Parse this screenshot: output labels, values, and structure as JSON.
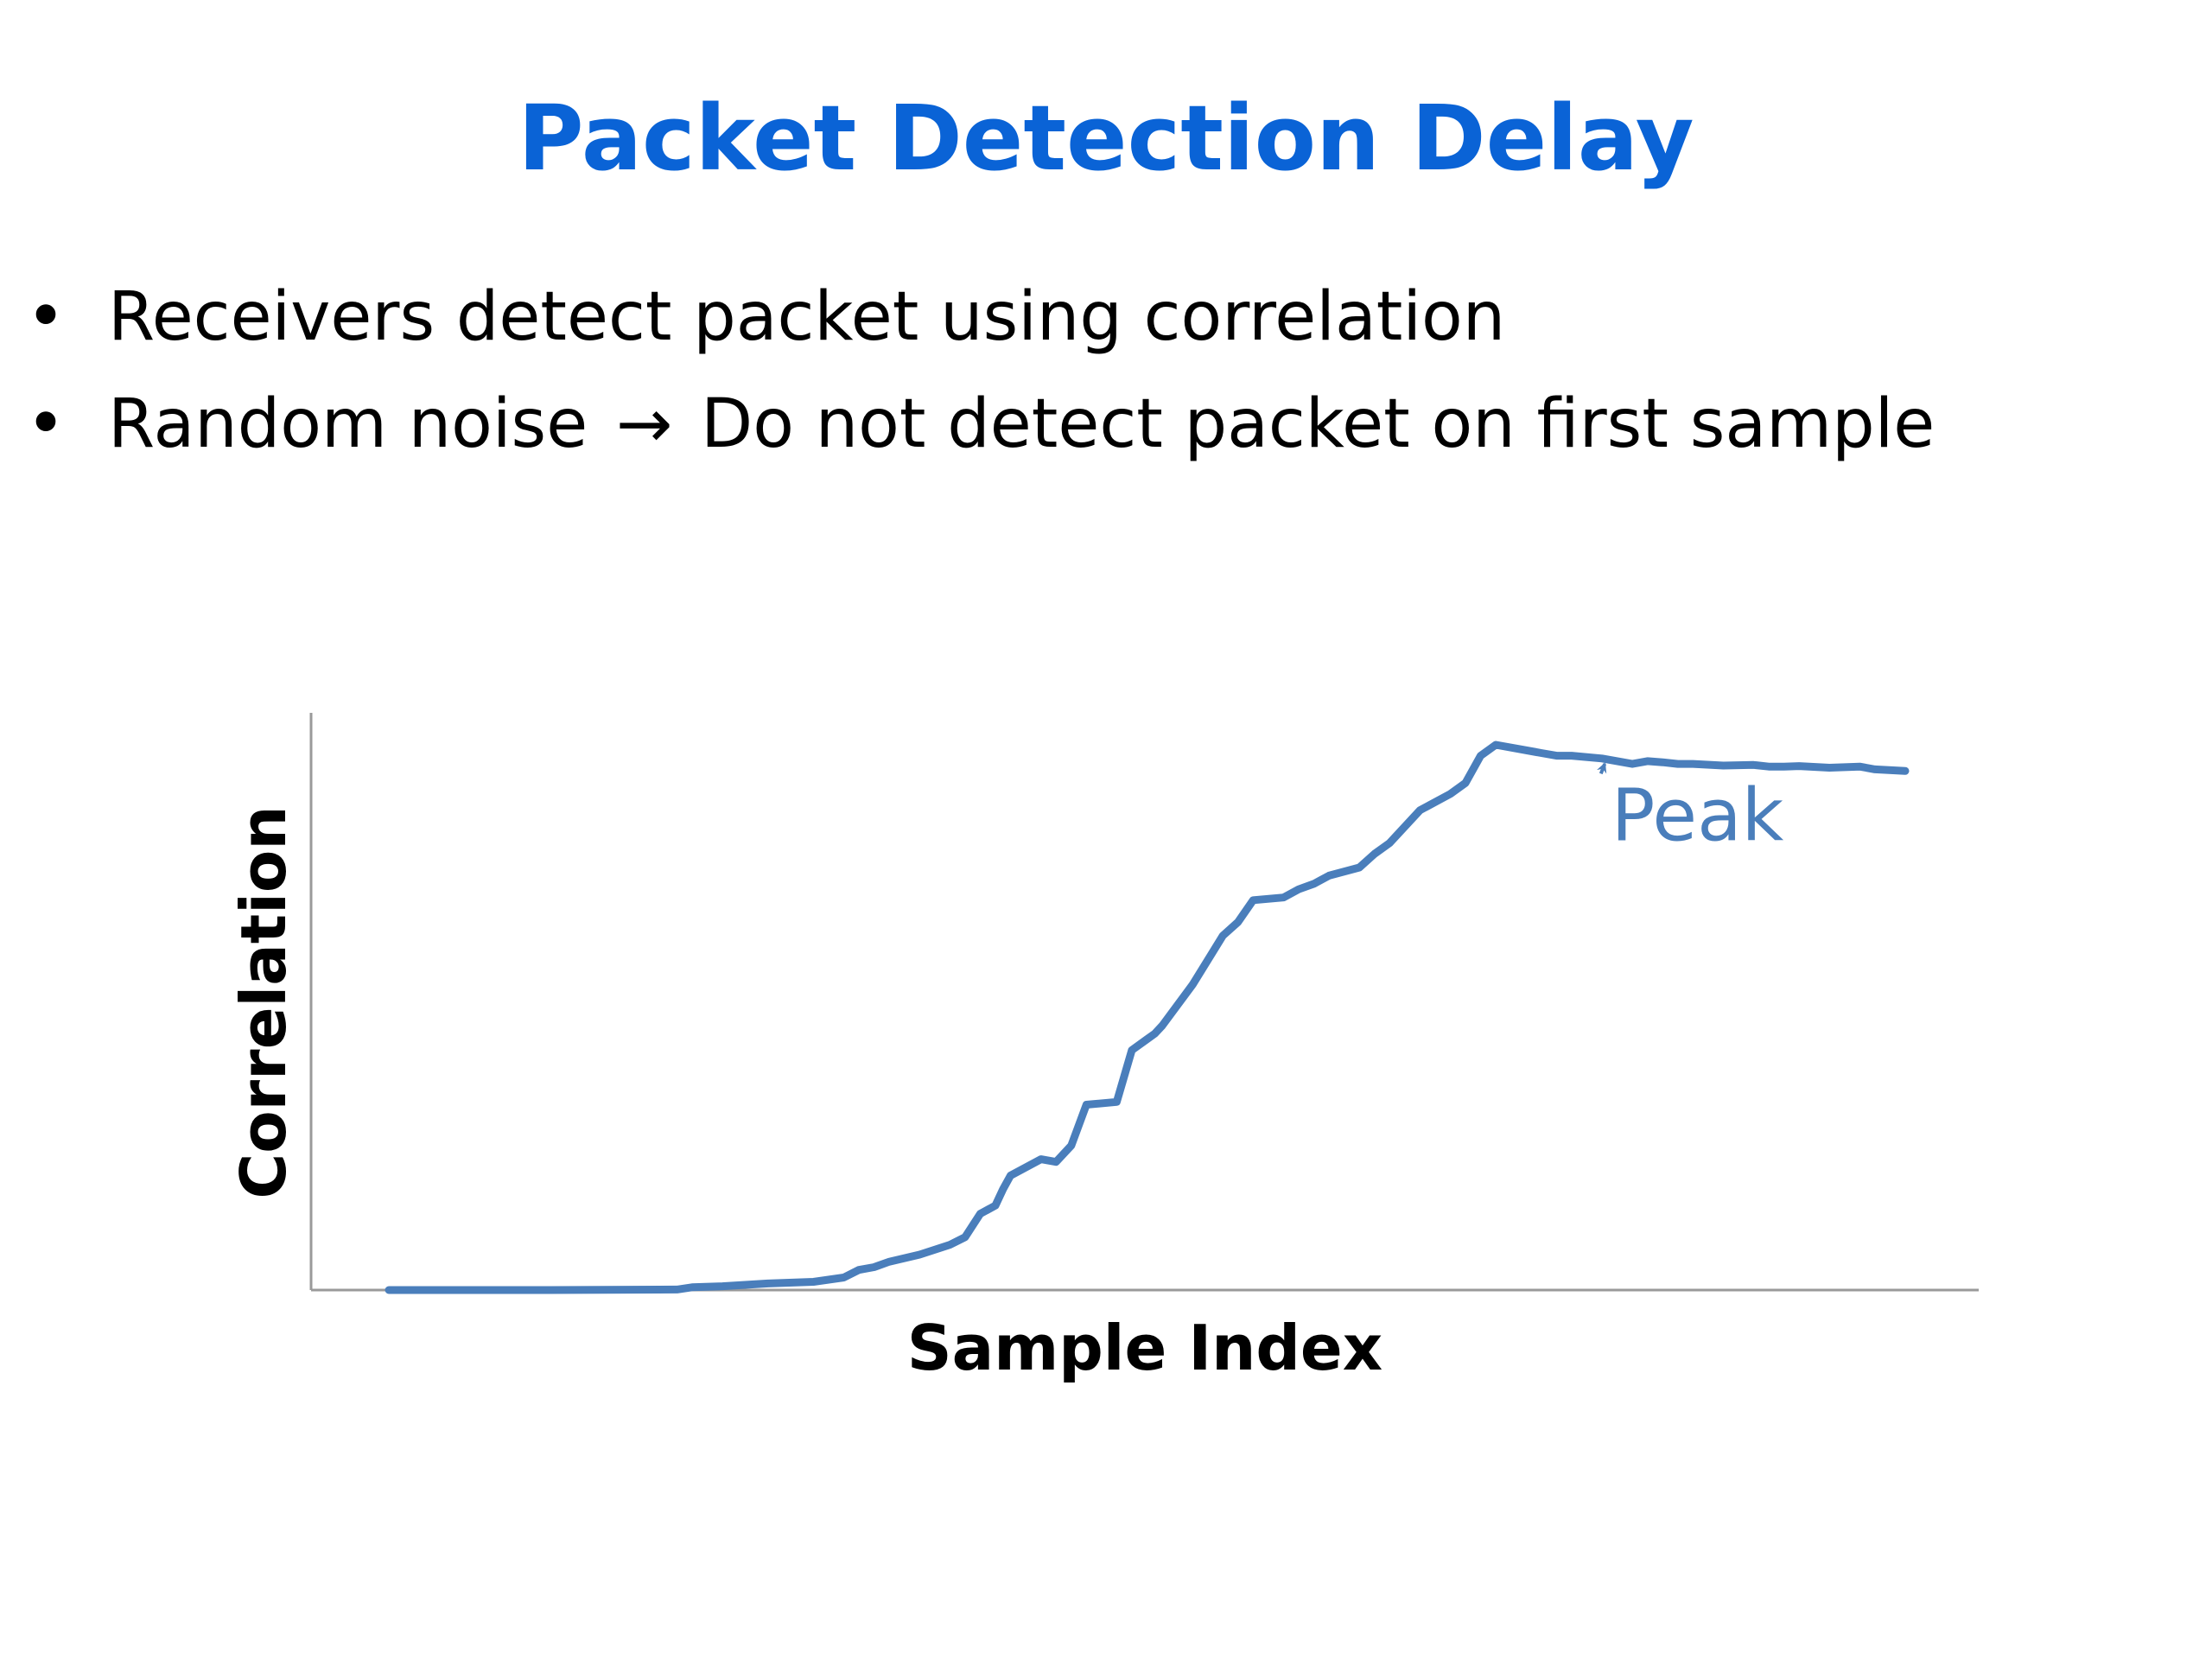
{
  "slide": {
    "title": "Packet Detection Delay",
    "title_color": "#0a63d6",
    "bullets": [
      {
        "text": "Receivers detect packet using  correlation"
      },
      {
        "before": "Random noise",
        "arrow": "→",
        "after": "Do not detect packet on first sample"
      }
    ],
    "bullet_marker": "•"
  },
  "chart_data": {
    "type": "line",
    "title": "",
    "xlabel": "Sample Index",
    "ylabel": "Correlation",
    "xlim": [
      0,
      100
    ],
    "ylim": [
      0,
      1
    ],
    "grid": false,
    "legend": "none",
    "series_color": "#4a7ebb",
    "annotation_color": "#4a7ebb",
    "series": [
      {
        "x": [
          0,
          10,
          19,
          20,
          22,
          25,
          28,
          30,
          31,
          32,
          33,
          35,
          37,
          38,
          39,
          40,
          40.5,
          41,
          43,
          44,
          45,
          46,
          48,
          49,
          50,
          50.5,
          51,
          53,
          55,
          56,
          57,
          59,
          60,
          61,
          62,
          64,
          65,
          66,
          68,
          70,
          71,
          72,
          73,
          76,
          77,
          78,
          80,
          82,
          83,
          84,
          85,
          86,
          88,
          90,
          91,
          92,
          93,
          95,
          97,
          98,
          100
        ],
        "y": [
          0,
          0,
          0.001,
          0.005,
          0.007,
          0.012,
          0.015,
          0.023,
          0.037,
          0.042,
          0.052,
          0.065,
          0.083,
          0.097,
          0.14,
          0.155,
          0.185,
          0.21,
          0.24,
          0.235,
          0.265,
          0.34,
          0.345,
          0.44,
          0.46,
          0.47,
          0.485,
          0.56,
          0.65,
          0.675,
          0.715,
          0.72,
          0.735,
          0.745,
          0.76,
          0.775,
          0.8,
          0.82,
          0.88,
          0.91,
          0.93,
          0.98,
          1.0,
          0.985,
          0.98,
          0.98,
          0.975,
          0.965,
          0.97,
          0.968,
          0.965,
          0.965,
          0.962,
          0.963,
          0.96,
          0.96,
          0.961,
          0.958,
          0.96,
          0.955,
          0.952
        ]
      }
    ],
    "annotations": [
      {
        "text": "Peak",
        "x": 80.5,
        "y": 0.86,
        "arrow_to_x": 79.5,
        "arrow_to_y": 1.0
      }
    ]
  }
}
